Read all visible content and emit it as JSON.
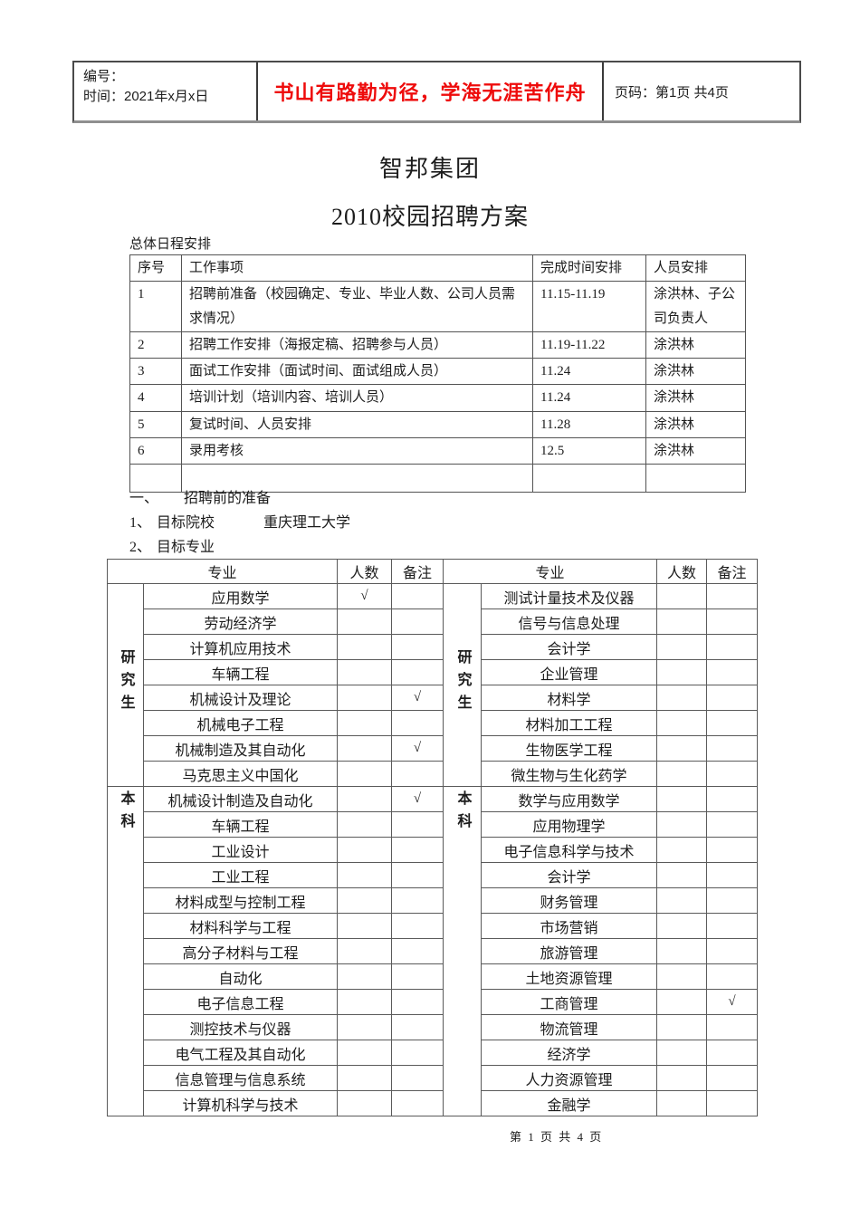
{
  "header": {
    "number_label": "编号：",
    "time_label": "时间：2021年x月x日",
    "motto": "书山有路勤为径，学海无涯苦作舟",
    "motto_color": "#ee0b0b",
    "page_label": "页码：第1页 共4页"
  },
  "title": "智邦集团",
  "subtitle": "2010校园招聘方案",
  "schedule": {
    "caption": "总体日程安排",
    "headers": [
      "序号",
      "工作事项",
      "完成时间安排",
      "人员安排"
    ],
    "rows": [
      [
        "1",
        "招聘前准备（校园确定、专业、毕业人数、公司人员需求情况）",
        "11.15-11.19",
        "涂洪林、子公司负责人"
      ],
      [
        "2",
        "招聘工作安排（海报定稿、招聘参与人员）",
        "11.19-11.22",
        "涂洪林"
      ],
      [
        "3",
        "面试工作安排（面试时间、面试组成人员）",
        "11.24",
        "涂洪林"
      ],
      [
        "4",
        "培训计划（培训内容、培训人员）",
        "11.24",
        "涂洪林"
      ],
      [
        "5",
        "复试时间、人员安排",
        "11.28",
        "涂洪林"
      ],
      [
        "6",
        "录用考核",
        "12.5",
        "涂洪林"
      ],
      [
        "",
        "",
        "",
        ""
      ]
    ]
  },
  "section": {
    "heading_number": "一、",
    "heading_text": "招聘前的准备",
    "item1_number": "1、",
    "item1_label": "目标院校",
    "item1_value": "重庆理工大学",
    "item2_number": "2、",
    "item2_label": "目标专业"
  },
  "majors": {
    "col_headers": {
      "major": "专业",
      "count": "人数",
      "note": "备注"
    },
    "left": {
      "groups": [
        {
          "label": "研究生",
          "rows": [
            [
              "应用数学",
              "√",
              ""
            ],
            [
              "劳动经济学",
              "",
              ""
            ],
            [
              "计算机应用技术",
              "",
              ""
            ],
            [
              "车辆工程",
              "",
              ""
            ],
            [
              "机械设计及理论",
              "",
              "√"
            ],
            [
              "机械电子工程",
              "",
              ""
            ],
            [
              "机械制造及其自动化",
              "",
              "√"
            ],
            [
              "马克思主义中国化",
              "",
              ""
            ]
          ]
        },
        {
          "label": "本科",
          "rows": [
            [
              "机械设计制造及自动化",
              "",
              "√"
            ],
            [
              "车辆工程",
              "",
              ""
            ],
            [
              "工业设计",
              "",
              ""
            ],
            [
              "工业工程",
              "",
              ""
            ],
            [
              "材料成型与控制工程",
              "",
              ""
            ],
            [
              "材料科学与工程",
              "",
              ""
            ],
            [
              "高分子材料与工程",
              "",
              ""
            ],
            [
              "自动化",
              "",
              ""
            ],
            [
              "电子信息工程",
              "",
              ""
            ],
            [
              "测控技术与仪器",
              "",
              ""
            ],
            [
              "电气工程及其自动化",
              "",
              ""
            ],
            [
              "信息管理与信息系统",
              "",
              ""
            ],
            [
              "计算机科学与技术",
              "",
              ""
            ]
          ]
        }
      ]
    },
    "right": {
      "groups": [
        {
          "label": "研究生",
          "rows": [
            [
              "测试计量技术及仪器",
              "",
              ""
            ],
            [
              "信号与信息处理",
              "",
              ""
            ],
            [
              "会计学",
              "",
              ""
            ],
            [
              "企业管理",
              "",
              ""
            ],
            [
              "材料学",
              "",
              ""
            ],
            [
              "材料加工工程",
              "",
              ""
            ],
            [
              "生物医学工程",
              "",
              ""
            ],
            [
              "微生物与生化药学",
              "",
              ""
            ]
          ]
        },
        {
          "label": "本科",
          "rows": [
            [
              "数学与应用数学",
              "",
              ""
            ],
            [
              "应用物理学",
              "",
              ""
            ],
            [
              "电子信息科学与技术",
              "",
              ""
            ],
            [
              "会计学",
              "",
              ""
            ],
            [
              "财务管理",
              "",
              ""
            ],
            [
              "市场营销",
              "",
              ""
            ],
            [
              "旅游管理",
              "",
              ""
            ],
            [
              "土地资源管理",
              "",
              ""
            ],
            [
              "工商管理",
              "",
              "√"
            ],
            [
              "物流管理",
              "",
              ""
            ],
            [
              "经济学",
              "",
              ""
            ],
            [
              "人力资源管理",
              "",
              ""
            ],
            [
              "金融学",
              "",
              ""
            ]
          ]
        }
      ]
    }
  },
  "footer": {
    "page_text": "第 1 页 共 4 页"
  }
}
